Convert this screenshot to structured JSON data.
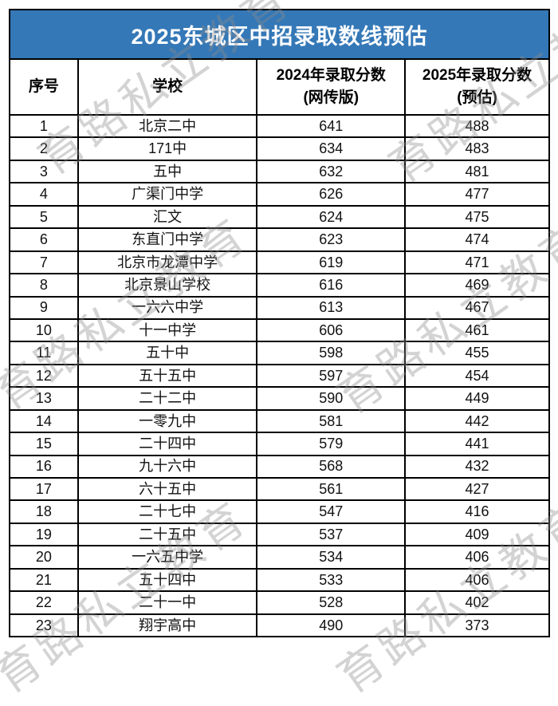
{
  "title": "2025东城区中招录取数线预估",
  "watermark": {
    "text": "育路私立教育"
  },
  "colors": {
    "title_bg": "#3478B7",
    "title_text": "#FFFFFF",
    "border": "#000000"
  },
  "table": {
    "columns": [
      {
        "label": "序号"
      },
      {
        "label": "学校"
      },
      {
        "label": "2024年录取分数",
        "sub": "(网传版)"
      },
      {
        "label": "2025年录取分数",
        "sub": "(预估)"
      }
    ],
    "rows": [
      [
        "1",
        "北京二中",
        "641",
        "488"
      ],
      [
        "2",
        "171中",
        "634",
        "483"
      ],
      [
        "3",
        "五中",
        "632",
        "481"
      ],
      [
        "4",
        "广渠门中学",
        "626",
        "477"
      ],
      [
        "5",
        "汇文",
        "624",
        "475"
      ],
      [
        "6",
        "东直门中学",
        "623",
        "474"
      ],
      [
        "7",
        "北京市龙潭中学",
        "619",
        "471"
      ],
      [
        "8",
        "北京景山学校",
        "616",
        "469"
      ],
      [
        "9",
        "一六六中学",
        "613",
        "467"
      ],
      [
        "10",
        "十一中学",
        "606",
        "461"
      ],
      [
        "11",
        "五十中",
        "598",
        "455"
      ],
      [
        "12",
        "五十五中",
        "597",
        "454"
      ],
      [
        "13",
        "二十二中",
        "590",
        "449"
      ],
      [
        "14",
        "一零九中",
        "581",
        "442"
      ],
      [
        "15",
        "二十四中",
        "579",
        "441"
      ],
      [
        "16",
        "九十六中",
        "568",
        "432"
      ],
      [
        "17",
        "六十五中",
        "561",
        "427"
      ],
      [
        "18",
        "二十七中",
        "547",
        "416"
      ],
      [
        "19",
        "二十五中",
        "537",
        "409"
      ],
      [
        "20",
        "一六五中学",
        "534",
        "406"
      ],
      [
        "21",
        "五十四中",
        "533",
        "406"
      ],
      [
        "22",
        "二十一中",
        "528",
        "402"
      ],
      [
        "23",
        "翔宇高中",
        "490",
        "373"
      ]
    ]
  }
}
